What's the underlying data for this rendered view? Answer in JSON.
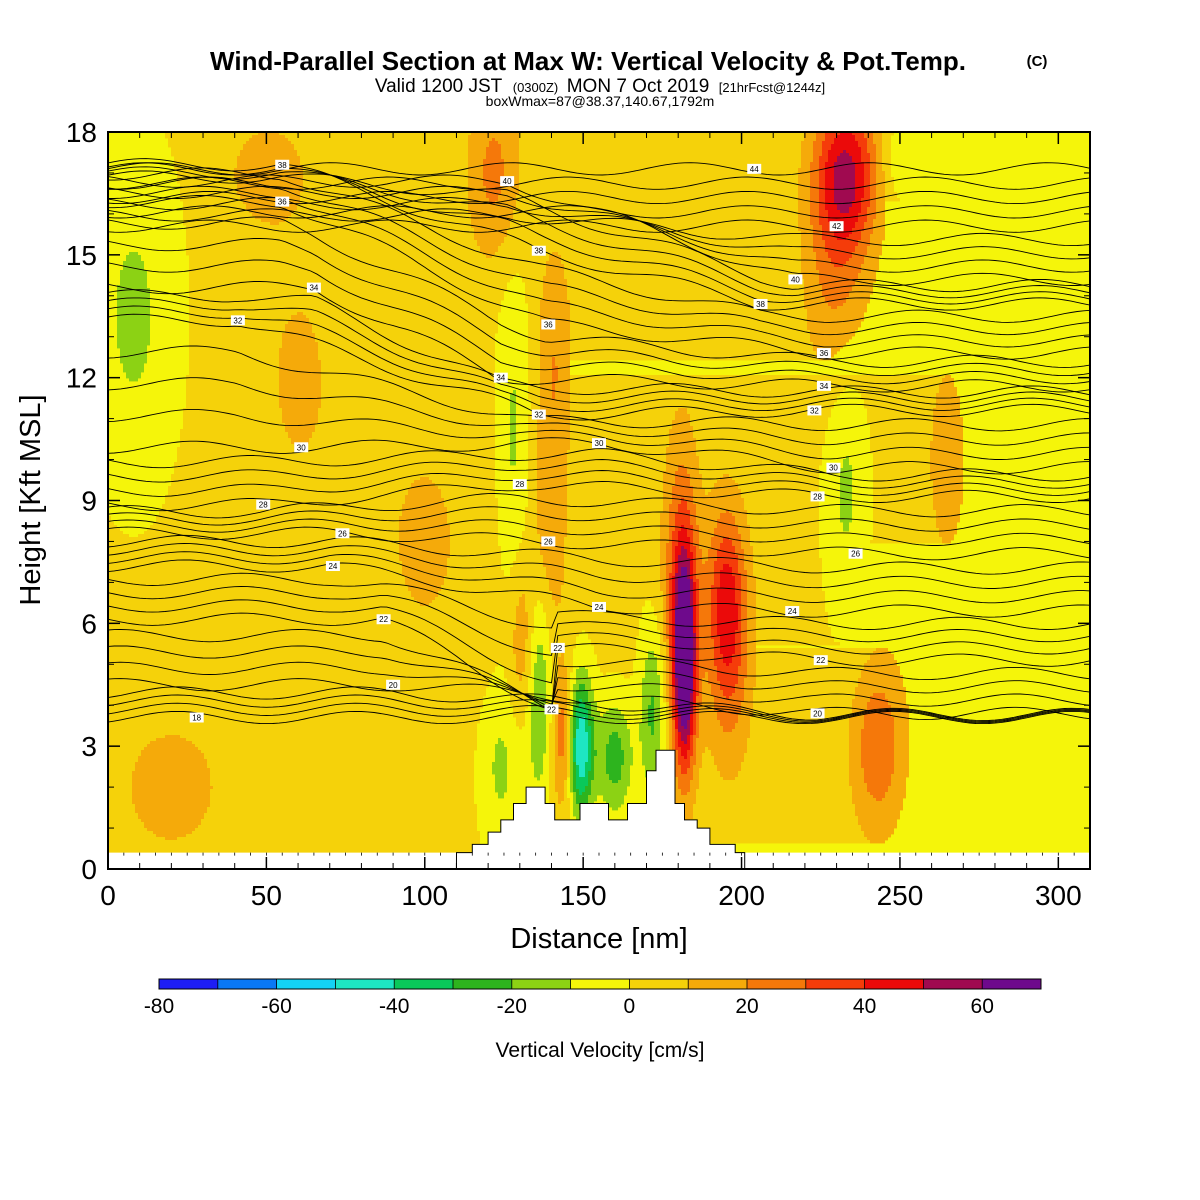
{
  "header": {
    "title": "Wind-Parallel Section at Max W: Vertical Velocity & Pot.Temp.",
    "title_mark": "(C)",
    "valid_prefix": "Valid 1200 JST",
    "valid_utc": "(0300Z)",
    "valid_date": "MON 7 Oct 2019",
    "forecast": "[21hrFcst@1244z]",
    "box_info": "boxWmax=87@38.37,140.67,1792m"
  },
  "colorbar": {
    "title": "Vertical Velocity [cm/s]",
    "colors": [
      "#1e1ef5",
      "#0a78f5",
      "#14d2f5",
      "#1ee6c3",
      "#0ac85a",
      "#2db41e",
      "#8cd214",
      "#f5f50a",
      "#f5d20a",
      "#f5aa0a",
      "#f5780a",
      "#f53c0a",
      "#eb0a0a",
      "#a00a50",
      "#6e0a8c"
    ],
    "bounds": [
      -80,
      -70,
      -60,
      -50,
      -40,
      -30,
      -20,
      -10,
      0,
      10,
      20,
      30,
      40,
      50,
      60,
      70
    ],
    "tick_values": [
      -80,
      -60,
      -40,
      -20,
      0,
      20,
      40,
      60
    ],
    "tick_labels": [
      "-80",
      "-60",
      "-40",
      "-20",
      "0",
      "20",
      "40",
      "60"
    ]
  },
  "chart_data": {
    "type": "heatmap",
    "title": "Wind-Parallel Section at Max W: Vertical Velocity & Pot.Temp.",
    "xlabel": "Distance [nm]",
    "ylabel": "Height [Kft MSL]",
    "xlim": [
      0,
      310
    ],
    "ylim": [
      0,
      18
    ],
    "x_ticks": [
      0,
      50,
      100,
      150,
      200,
      250,
      300
    ],
    "x_tick_labels": [
      "0",
      "50",
      "100",
      "150",
      "200",
      "250",
      "300"
    ],
    "y_ticks": [
      0,
      3,
      6,
      9,
      12,
      15,
      18
    ],
    "y_tick_labels": [
      "0",
      "3",
      "6",
      "9",
      "12",
      "15",
      "18"
    ],
    "fill_variable": "Vertical Velocity",
    "fill_units": "cm/s",
    "background_value": 3,
    "velocity_features": [
      {
        "x": 182,
        "z": 5.0,
        "value": 68,
        "sx": 2.5,
        "sz": 1.8
      },
      {
        "x": 181,
        "z": 7.0,
        "value": 30,
        "sx": 4,
        "sz": 2.5
      },
      {
        "x": 196,
        "z": 5.5,
        "value": 28,
        "sx": 5,
        "sz": 2.0
      },
      {
        "x": 195,
        "z": 6.8,
        "value": 22,
        "sx": 4,
        "sz": 1.5
      },
      {
        "x": 149,
        "z": 3.0,
        "value": -55,
        "sx": 3,
        "sz": 1.2
      },
      {
        "x": 144,
        "z": 3.2,
        "value": 30,
        "sx": 2.5,
        "sz": 1.2
      },
      {
        "x": 136,
        "z": 4.5,
        "value": -25,
        "sx": 3,
        "sz": 2.0
      },
      {
        "x": 160,
        "z": 2.7,
        "value": -28,
        "sx": 4,
        "sz": 1.0
      },
      {
        "x": 172,
        "z": 3.8,
        "value": -25,
        "sx": 3,
        "sz": 1.5
      },
      {
        "x": 124,
        "z": 2.5,
        "value": -15,
        "sx": 5,
        "sz": 1.5
      },
      {
        "x": 128,
        "z": 10.5,
        "value": -15,
        "sx": 4,
        "sz": 3.0
      },
      {
        "x": 131,
        "z": 5.5,
        "value": 18,
        "sx": 3,
        "sz": 1.5
      },
      {
        "x": 139,
        "z": 8.0,
        "value": 15,
        "sx": 4,
        "sz": 2.0
      },
      {
        "x": 122,
        "z": 17.0,
        "value": 20,
        "sx": 6,
        "sz": 1.5
      },
      {
        "x": 141,
        "z": 12.5,
        "value": 16,
        "sx": 4,
        "sz": 2.0
      },
      {
        "x": 8,
        "z": 13.5,
        "value": -15,
        "sx": 10,
        "sz": 3.0
      },
      {
        "x": 233,
        "z": 17.0,
        "value": 45,
        "sx": 7,
        "sz": 1.3
      },
      {
        "x": 230,
        "z": 14.5,
        "value": 20,
        "sx": 7,
        "sz": 2.0
      },
      {
        "x": 233,
        "z": 9.5,
        "value": -15,
        "sx": 5,
        "sz": 2.5
      },
      {
        "x": 250,
        "z": 17.3,
        "value": -12,
        "sx": 4,
        "sz": 0.8
      },
      {
        "x": 243,
        "z": 3.0,
        "value": 25,
        "sx": 6,
        "sz": 1.5
      },
      {
        "x": 50,
        "z": 17.0,
        "value": 14,
        "sx": 8,
        "sz": 0.8
      },
      {
        "x": 60,
        "z": 12.0,
        "value": 8,
        "sx": 12,
        "sz": 3.0
      },
      {
        "x": 20,
        "z": 2.0,
        "value": 10,
        "sx": 15,
        "sz": 1.5
      },
      {
        "x": 100,
        "z": 8.0,
        "value": 8,
        "sx": 15,
        "sz": 3.0
      },
      {
        "x": 265,
        "z": 10.0,
        "value": 8,
        "sx": 10,
        "sz": 4.0
      },
      {
        "x": 290,
        "z": 2.0,
        "value": 6,
        "sx": 10,
        "sz": 2.0
      }
    ],
    "terrain": {
      "x": [
        110,
        113,
        115,
        117,
        120,
        124,
        128,
        132,
        135,
        138,
        141,
        144,
        147,
        149,
        152,
        155,
        158,
        161,
        164,
        167,
        170,
        173,
        176,
        179,
        182,
        186,
        190,
        194,
        198,
        201
      ],
      "height": [
        0.3,
        0.3,
        0.6,
        0.6,
        0.9,
        1.2,
        1.6,
        2.0,
        2.0,
        1.6,
        1.2,
        1.2,
        1.2,
        1.6,
        1.6,
        1.6,
        1.2,
        1.2,
        1.6,
        1.6,
        2.4,
        2.9,
        2.9,
        1.6,
        1.2,
        1.0,
        0.6,
        0.6,
        0.3,
        0.3
      ]
    },
    "theta_contours": {
      "levels": [
        18,
        20,
        22,
        24,
        26,
        28,
        30,
        32,
        34,
        36,
        38,
        40,
        42,
        44
      ],
      "labels": [
        {
          "text": "38",
          "x": 55,
          "z": 17.2
        },
        {
          "text": "36",
          "x": 55,
          "z": 16.3
        },
        {
          "text": "34",
          "x": 65,
          "z": 14.2
        },
        {
          "text": "32",
          "x": 41,
          "z": 13.4
        },
        {
          "text": "30",
          "x": 61,
          "z": 10.3
        },
        {
          "text": "28",
          "x": 49,
          "z": 8.9
        },
        {
          "text": "26",
          "x": 74,
          "z": 8.2
        },
        {
          "text": "24",
          "x": 71,
          "z": 7.4
        },
        {
          "text": "22",
          "x": 87,
          "z": 6.1
        },
        {
          "text": "20",
          "x": 90,
          "z": 4.5
        },
        {
          "text": "18",
          "x": 28,
          "z": 3.7
        },
        {
          "text": "40",
          "x": 126,
          "z": 16.8
        },
        {
          "text": "38",
          "x": 136,
          "z": 15.1
        },
        {
          "text": "36",
          "x": 139,
          "z": 13.3
        },
        {
          "text": "34",
          "x": 124,
          "z": 12.0
        },
        {
          "text": "32",
          "x": 136,
          "z": 11.1
        },
        {
          "text": "30",
          "x": 155,
          "z": 10.4
        },
        {
          "text": "28",
          "x": 130,
          "z": 9.4
        },
        {
          "text": "26",
          "x": 139,
          "z": 8.0
        },
        {
          "text": "24",
          "x": 155,
          "z": 6.4
        },
        {
          "text": "22",
          "x": 142,
          "z": 5.4
        },
        {
          "text": "22",
          "x": 140,
          "z": 3.9
        },
        {
          "text": "44",
          "x": 204,
          "z": 17.1
        },
        {
          "text": "42",
          "x": 230,
          "z": 15.7
        },
        {
          "text": "40",
          "x": 217,
          "z": 14.4
        },
        {
          "text": "38",
          "x": 206,
          "z": 13.8
        },
        {
          "text": "36",
          "x": 226,
          "z": 12.6
        },
        {
          "text": "34",
          "x": 226,
          "z": 11.8
        },
        {
          "text": "32",
          "x": 223,
          "z": 11.2
        },
        {
          "text": "30",
          "x": 229,
          "z": 9.8
        },
        {
          "text": "28",
          "x": 224,
          "z": 9.1
        },
        {
          "text": "26",
          "x": 236,
          "z": 7.7
        },
        {
          "text": "24",
          "x": 216,
          "z": 6.3
        },
        {
          "text": "22",
          "x": 225,
          "z": 5.1
        },
        {
          "text": "20",
          "x": 224,
          "z": 3.8
        }
      ]
    }
  }
}
